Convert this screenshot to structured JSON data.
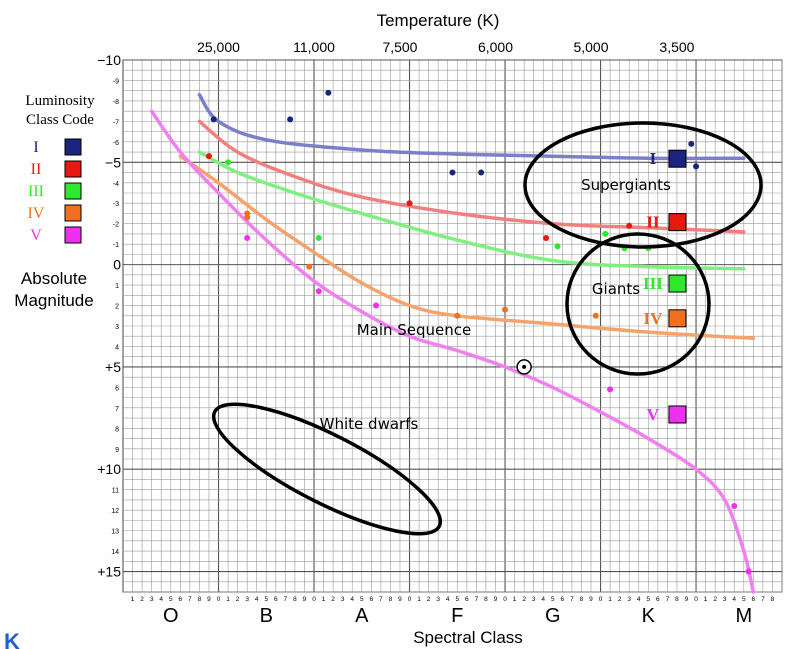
{
  "chart_data": {
    "type": "scatter",
    "title": "",
    "x_top_label": "Temperature (K)",
    "x_top_ticks": [
      {
        "label": "25,000",
        "x": 10
      },
      {
        "label": "11,000",
        "x": 20
      },
      {
        "label": "7,500",
        "x": 29
      },
      {
        "label": "6,000",
        "x": 39
      },
      {
        "label": "5,000",
        "x": 49
      },
      {
        "label": "3,500",
        "x": 58
      }
    ],
    "xlabel": "Spectral Class",
    "x_classes": [
      {
        "label": "O",
        "x": 5
      },
      {
        "label": "B",
        "x": 15
      },
      {
        "label": "A",
        "x": 25
      },
      {
        "label": "F",
        "x": 35
      },
      {
        "label": "G",
        "x": 45
      },
      {
        "label": "K",
        "x": 55
      },
      {
        "label": "M",
        "x": 65
      }
    ],
    "x_minor_digits": [
      "0",
      "1",
      "2",
      "3",
      "4",
      "5",
      "6",
      "7",
      "8",
      "9"
    ],
    "xlim": [
      0,
      69
    ],
    "ylabel_line1": "Absolute",
    "ylabel_line2": "Magnitude",
    "ylim": [
      -10,
      16
    ],
    "y_major_ticks": [
      {
        "label": "−10",
        "y": -10
      },
      {
        "label": "−5",
        "y": -5
      },
      {
        "label": "0",
        "y": 0
      },
      {
        "label": "+5",
        "y": 5
      },
      {
        "label": "+10",
        "y": 10
      },
      {
        "label": "+15",
        "y": 15
      }
    ],
    "y_minor_ticks": [
      {
        "label": "-9",
        "y": -9
      },
      {
        "label": "-8",
        "y": -8
      },
      {
        "label": "-7",
        "y": -7
      },
      {
        "label": "-6",
        "y": -6
      },
      {
        "label": "-4",
        "y": -4
      },
      {
        "label": "-3",
        "y": -3
      },
      {
        "label": "-2",
        "y": -2
      },
      {
        "label": "-1",
        "y": -1
      },
      {
        "label": "1",
        "y": 1
      },
      {
        "label": "2",
        "y": 2
      },
      {
        "label": "3",
        "y": 3
      },
      {
        "label": "4",
        "y": 4
      },
      {
        "label": "6",
        "y": 6
      },
      {
        "label": "7",
        "y": 7
      },
      {
        "label": "8",
        "y": 8
      },
      {
        "label": "9",
        "y": 9
      },
      {
        "label": "11",
        "y": 11
      },
      {
        "label": "12",
        "y": 12
      },
      {
        "label": "13",
        "y": 13
      },
      {
        "label": "14",
        "y": 14
      }
    ],
    "grid": true,
    "legend": {
      "title_line1": "Luminosity",
      "title_line2": "Class Code",
      "entries": [
        {
          "code": "I",
          "color": "#1a237e"
        },
        {
          "code": "II",
          "color": "#e8190f"
        },
        {
          "code": "III",
          "color": "#2ee82e"
        },
        {
          "code": "IV",
          "color": "#f07020"
        },
        {
          "code": "V",
          "color": "#f030f0"
        }
      ]
    },
    "in_plot_class_markers": [
      {
        "code": "I",
        "color": "#1a237e",
        "x": 58,
        "y": -5.2
      },
      {
        "code": "II",
        "color": "#e8190f",
        "x": 58,
        "y": -2.1
      },
      {
        "code": "III",
        "color": "#2ee82e",
        "x": 58,
        "y": 0.9
      },
      {
        "code": "IV",
        "color": "#f07020",
        "x": 58,
        "y": 2.6
      },
      {
        "code": "V",
        "color": "#f030f0",
        "x": 58,
        "y": 7.3
      }
    ],
    "series": [
      {
        "code": "I",
        "color": "#7b7fc8",
        "curve": [
          [
            8,
            -8.3
          ],
          [
            10,
            -7
          ],
          [
            15,
            -6.1
          ],
          [
            25,
            -5.6
          ],
          [
            35,
            -5.4
          ],
          [
            45,
            -5.3
          ],
          [
            55,
            -5.2
          ],
          [
            65,
            -5.2
          ]
        ],
        "points": [
          [
            9.5,
            -7.1
          ],
          [
            17.5,
            -7.1
          ],
          [
            21.5,
            -8.4
          ],
          [
            34.5,
            -4.5
          ],
          [
            37.5,
            -4.5
          ],
          [
            59.5,
            -5.9
          ],
          [
            60,
            -4.8
          ]
        ]
      },
      {
        "code": "II",
        "color": "#f07f7f",
        "curve": [
          [
            8,
            -7
          ],
          [
            12,
            -5.5
          ],
          [
            18,
            -4.3
          ],
          [
            25,
            -3.3
          ],
          [
            35,
            -2.5
          ],
          [
            45,
            -2
          ],
          [
            55,
            -1.8
          ],
          [
            65,
            -1.6
          ]
        ],
        "points": [
          [
            9,
            -5.3
          ],
          [
            30,
            -3
          ],
          [
            44.3,
            -1.3
          ],
          [
            53,
            -1.9
          ]
        ]
      },
      {
        "code": "III",
        "color": "#7ff07f",
        "curve": [
          [
            8,
            -5.5
          ],
          [
            12,
            -4.5
          ],
          [
            18,
            -3.5
          ],
          [
            25,
            -2.5
          ],
          [
            35,
            -1.2
          ],
          [
            45,
            -0.2
          ],
          [
            55,
            0.1
          ],
          [
            65,
            0.2
          ]
        ],
        "points": [
          [
            11,
            -5
          ],
          [
            20.5,
            -1.3
          ],
          [
            45.5,
            -0.9
          ],
          [
            50.5,
            -1.5
          ],
          [
            52.5,
            -0.8
          ],
          [
            55,
            -0.8
          ]
        ]
      },
      {
        "code": "IV",
        "color": "#f5a36a",
        "curve": [
          [
            6,
            -5.3
          ],
          [
            10,
            -4
          ],
          [
            15,
            -2.2
          ],
          [
            20,
            -0.6
          ],
          [
            25,
            0.9
          ],
          [
            30,
            2
          ],
          [
            35,
            2.5
          ],
          [
            45,
            2.9
          ],
          [
            55,
            3.3
          ],
          [
            66,
            3.6
          ]
        ],
        "points": [
          [
            13,
            -2.5
          ],
          [
            13,
            -2.3
          ],
          [
            19.5,
            0.1
          ],
          [
            35,
            2.5
          ],
          [
            40,
            2.2
          ],
          [
            49.5,
            2.5
          ]
        ]
      },
      {
        "code": "V",
        "color": "#f07ff0",
        "curve": [
          [
            3,
            -7.5
          ],
          [
            6,
            -5.5
          ],
          [
            10,
            -3.5
          ],
          [
            15,
            -1.2
          ],
          [
            20,
            0.8
          ],
          [
            25,
            2.3
          ],
          [
            30,
            3.5
          ],
          [
            35,
            4.2
          ],
          [
            40,
            5
          ],
          [
            45,
            6
          ],
          [
            50,
            7.2
          ],
          [
            55,
            8.5
          ],
          [
            60,
            10
          ],
          [
            63,
            11.5
          ],
          [
            65,
            14
          ],
          [
            66,
            16
          ]
        ],
        "points": [
          [
            13,
            -1.3
          ],
          [
            20.5,
            1.3
          ],
          [
            26.5,
            2
          ],
          [
            42,
            5
          ],
          [
            51,
            6.1
          ],
          [
            64,
            11.8
          ],
          [
            65.5,
            15
          ]
        ]
      }
    ],
    "sun": {
      "x": 42,
      "y": 5
    },
    "region_labels": {
      "supergiants": "Supergiants",
      "giants": "Giants",
      "main_sequence": "Main Sequence",
      "white_dwarfs": "White dwarfs"
    }
  },
  "corner_glyph": "K"
}
